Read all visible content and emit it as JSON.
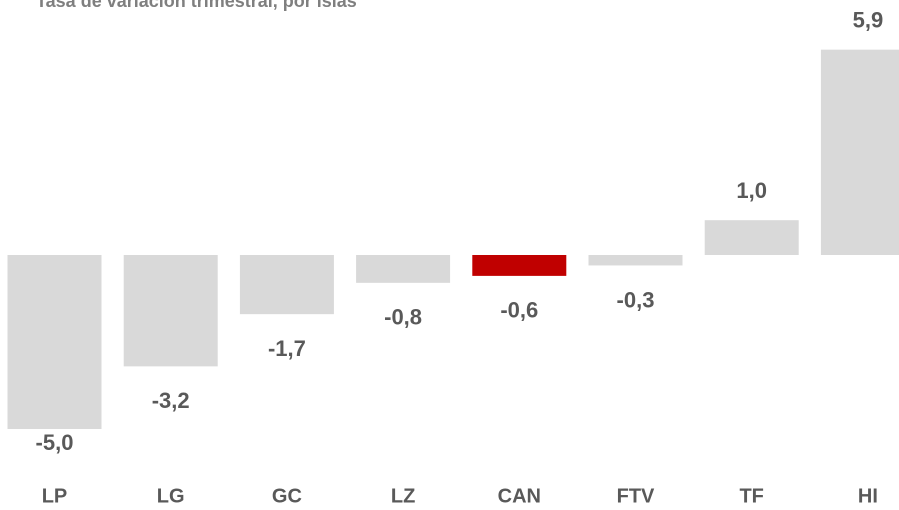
{
  "chart_data": {
    "type": "bar",
    "title": "Tasa de variación trimestral, por islas",
    "categories": [
      "LP",
      "LG",
      "GC",
      "LZ",
      "CAN",
      "FTV",
      "TF",
      "HI"
    ],
    "values": [
      -5.0,
      -3.2,
      -1.7,
      -0.8,
      -0.6,
      -0.3,
      1.0,
      5.9
    ],
    "value_labels": [
      "-5,0",
      "-3,2",
      "-1,7",
      "-0,8",
      "-0,6",
      "-0,3",
      "1,0",
      "5,9"
    ],
    "colors": [
      "#d9d9d9",
      "#d9d9d9",
      "#d9d9d9",
      "#d9d9d9",
      "#c00000",
      "#d9d9d9",
      "#d9d9d9",
      "#d9d9d9"
    ]
  }
}
